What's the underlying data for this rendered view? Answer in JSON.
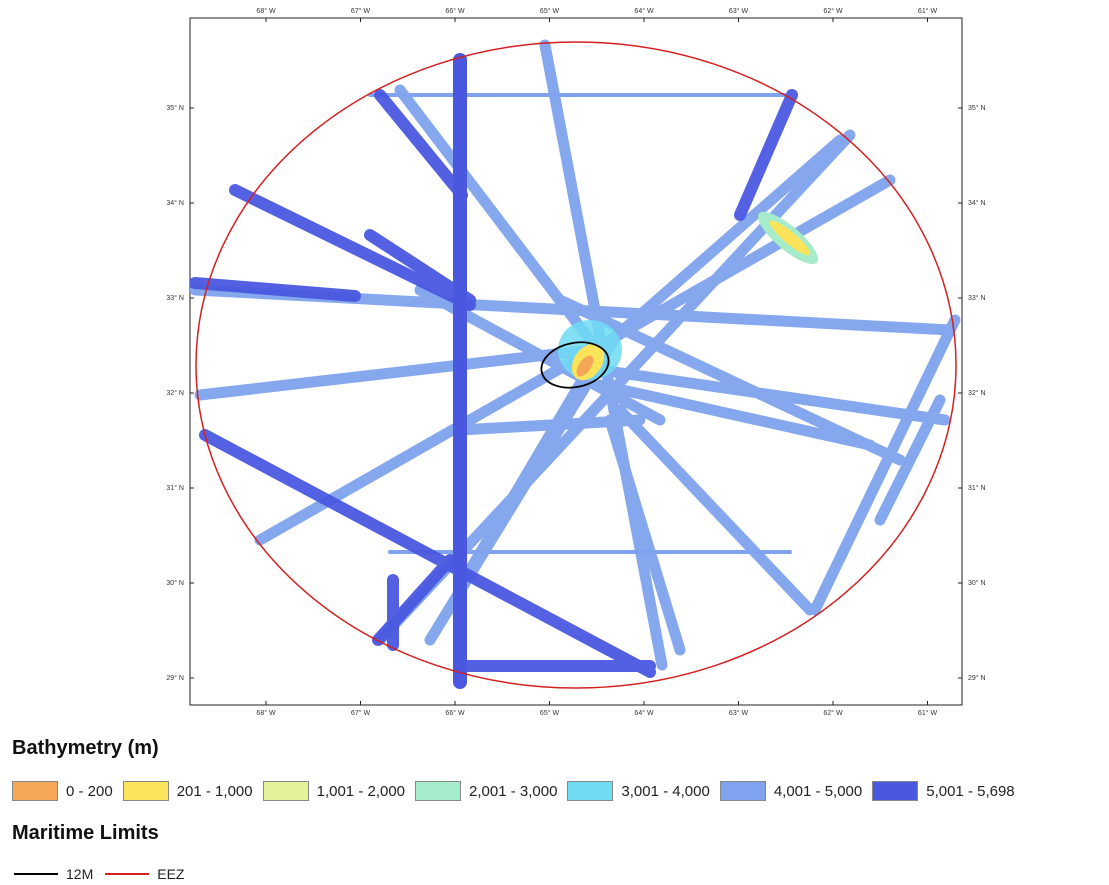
{
  "map": {
    "longitudes": [
      "68° W",
      "67° W",
      "66° W",
      "65° W",
      "64° W",
      "63° W",
      "62° W",
      "61° W"
    ],
    "latitudes": [
      "35° N",
      "34° N",
      "33° N",
      "32° N",
      "31° N",
      "30° N",
      "29° N"
    ]
  },
  "legend": {
    "bathymetry_title": "Bathymetry (m)",
    "classes": [
      {
        "label": "0 - 200",
        "color": "#f4a857"
      },
      {
        "label": "201 - 1,000",
        "color": "#fbe35a"
      },
      {
        "label": "1,001 - 2,000",
        "color": "#e4f29a"
      },
      {
        "label": "2,001 - 3,000",
        "color": "#a6eccb"
      },
      {
        "label": "3,001 - 4,000",
        "color": "#6fdcf2"
      },
      {
        "label": "4,001 - 5,000",
        "color": "#7fa3ee"
      },
      {
        "label": "5,001 - 5,698",
        "color": "#4a58e0"
      }
    ],
    "limits_title": "Maritime Limits",
    "limits": [
      {
        "label": "12M",
        "color": "#000000"
      },
      {
        "label": "EEZ",
        "color": "#d42020"
      }
    ]
  }
}
